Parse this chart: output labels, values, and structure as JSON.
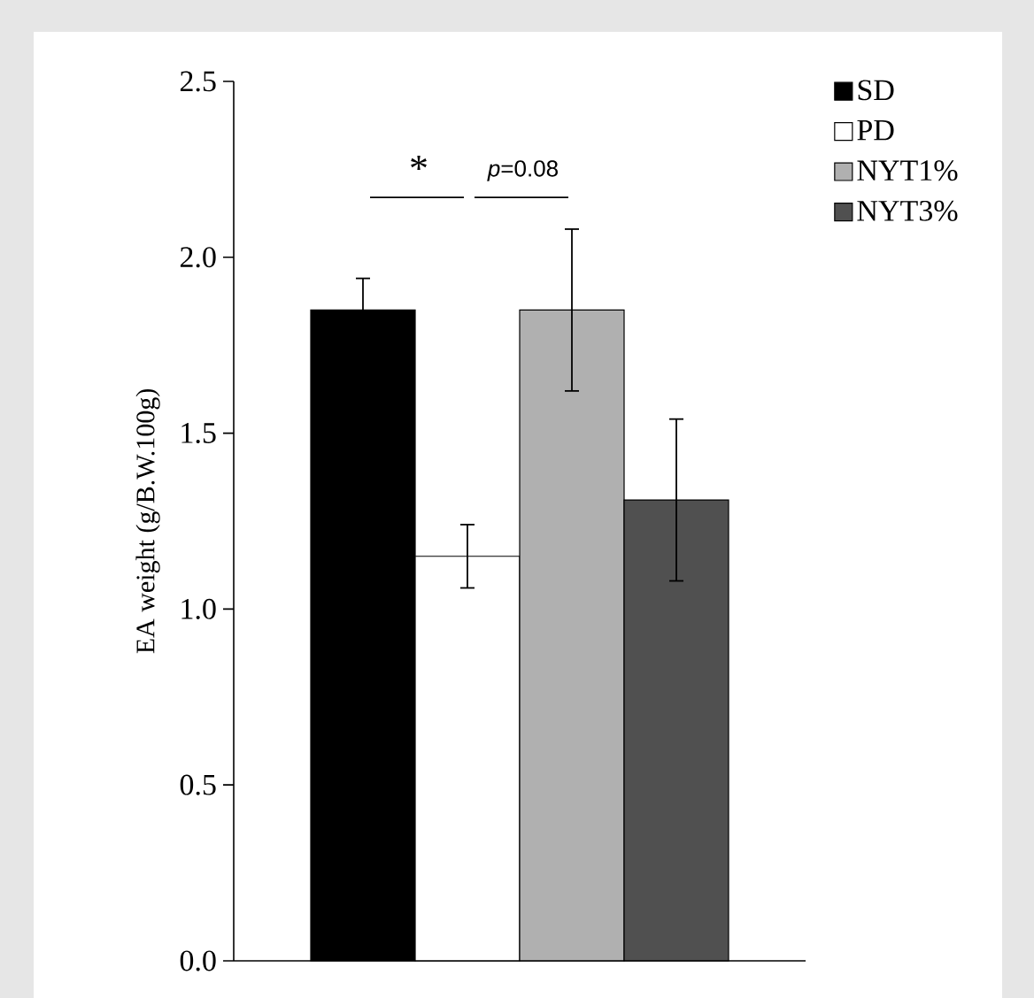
{
  "chart_data": {
    "type": "bar",
    "ylabel": "EA weight (g/B.W.100g)",
    "categories": [
      null
    ],
    "series": [
      {
        "name": "SD",
        "color": "#000000",
        "values": [
          1.85
        ],
        "errors": [
          0.09
        ]
      },
      {
        "name": "PD",
        "color": "#ffffff",
        "values": [
          1.15
        ],
        "errors": [
          0.09
        ]
      },
      {
        "name": "NYT1%",
        "color": "#b0b0b0",
        "values": [
          1.85
        ],
        "errors": [
          0.23
        ]
      },
      {
        "name": "NYT3%",
        "color": "#505050",
        "values": [
          1.31
        ],
        "errors": [
          0.23
        ]
      }
    ],
    "ylim": [
      0,
      2.5
    ],
    "yticks": [
      {
        "value": 0,
        "label": "0.0"
      },
      {
        "value": 0.5,
        "label": "0.5"
      },
      {
        "value": 1,
        "label": "1.0"
      },
      {
        "value": 1.5,
        "label": "1.5"
      },
      {
        "value": 2,
        "label": "2.0"
      },
      {
        "value": 2.5,
        "label": "2.5"
      }
    ],
    "annotations": [
      "*",
      "*p*=0.08"
    ],
    "legend": "top right",
    "tick_labels": "y"
  }
}
